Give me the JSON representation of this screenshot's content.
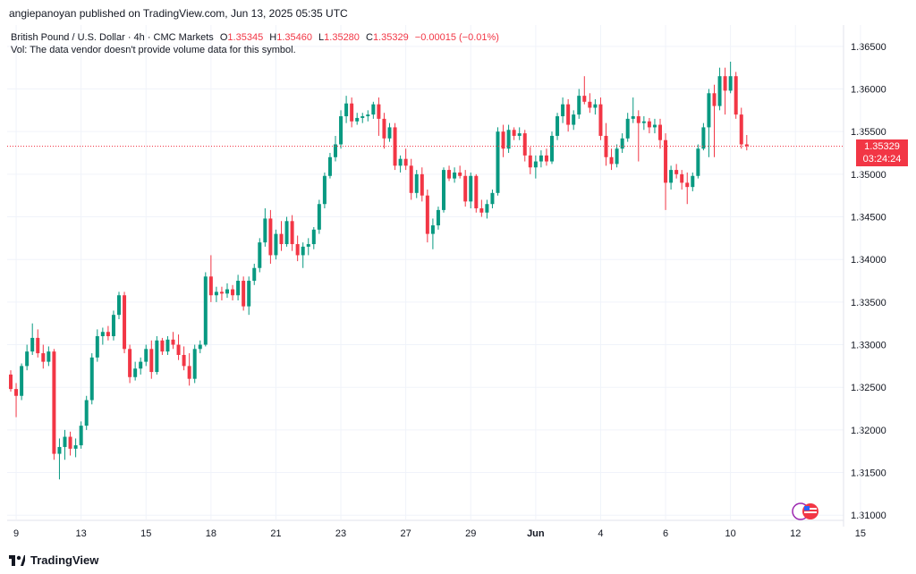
{
  "header": {
    "published": "angiepanoyan published on TradingView.com, Jun 13, 2025 05:35 UTC"
  },
  "legend": {
    "symbol": "British Pound / U.S. Dollar · 4h · CMC Markets",
    "o_label": "O",
    "o_value": "1.35345",
    "h_label": "H",
    "h_value": "1.35460",
    "l_label": "L",
    "l_value": "1.35280",
    "c_label": "C",
    "c_value": "1.35329",
    "change": "−0.00015 (−0.01%)",
    "volume_note": "Vol: The data vendor doesn't provide volume data for this symbol."
  },
  "price_tag": {
    "price": "1.35329",
    "countdown": "03:24:24"
  },
  "footer": {
    "brand": "TradingView"
  },
  "colors": {
    "up": "#089981",
    "down": "#f23645",
    "grid": "#f0f3fa",
    "axis_text": "#131722"
  },
  "icons": [
    "tradingview-logo-icon",
    "event-flag-icon"
  ],
  "chart_data": {
    "type": "candlestick",
    "ylim": [
      1.3095,
      1.3675
    ],
    "y_ticks": [
      "1.31000",
      "1.31500",
      "1.32000",
      "1.32500",
      "1.33000",
      "1.33500",
      "1.34000",
      "1.34500",
      "1.35000",
      "1.35500",
      "1.36000",
      "1.36500"
    ],
    "x_ticks": [
      {
        "label": "9",
        "index": 1
      },
      {
        "label": "13",
        "index": 13
      },
      {
        "label": "15",
        "index": 25
      },
      {
        "label": "18",
        "index": 37
      },
      {
        "label": "21",
        "index": 49
      },
      {
        "label": "23",
        "index": 61
      },
      {
        "label": "27",
        "index": 73
      },
      {
        "label": "29",
        "index": 85
      },
      {
        "label": "Jun",
        "index": 97
      },
      {
        "label": "4",
        "index": 109
      },
      {
        "label": "6",
        "index": 121
      },
      {
        "label": "10",
        "index": 133
      },
      {
        "label": "12",
        "index": 145
      },
      {
        "label": "15",
        "index": 157
      }
    ],
    "last_price": 1.35329,
    "candles": [
      [
        1.3265,
        1.327,
        1.3245,
        1.3248
      ],
      [
        1.3248,
        1.3255,
        1.3215,
        1.324
      ],
      [
        1.324,
        1.3278,
        1.3235,
        1.3275
      ],
      [
        1.3275,
        1.33,
        1.327,
        1.3292
      ],
      [
        1.3292,
        1.3325,
        1.3288,
        1.3308
      ],
      [
        1.3308,
        1.3318,
        1.3285,
        1.329
      ],
      [
        1.329,
        1.33,
        1.3272,
        1.328
      ],
      [
        1.328,
        1.3298,
        1.3275,
        1.3292
      ],
      [
        1.3292,
        1.3295,
        1.3165,
        1.3172
      ],
      [
        1.3172,
        1.319,
        1.3142,
        1.318
      ],
      [
        1.318,
        1.32,
        1.3165,
        1.3192
      ],
      [
        1.3192,
        1.3198,
        1.317,
        1.3178
      ],
      [
        1.3178,
        1.319,
        1.3168,
        1.3182
      ],
      [
        1.3182,
        1.321,
        1.3178,
        1.3205
      ],
      [
        1.3205,
        1.324,
        1.32,
        1.3235
      ],
      [
        1.3235,
        1.329,
        1.323,
        1.3285
      ],
      [
        1.3285,
        1.3318,
        1.328,
        1.331
      ],
      [
        1.331,
        1.332,
        1.33,
        1.3315
      ],
      [
        1.3315,
        1.3322,
        1.3305,
        1.331
      ],
      [
        1.331,
        1.334,
        1.3305,
        1.3335
      ],
      [
        1.3335,
        1.3362,
        1.333,
        1.3358
      ],
      [
        1.3358,
        1.3362,
        1.329,
        1.3295
      ],
      [
        1.3295,
        1.33,
        1.3255,
        1.3262
      ],
      [
        1.3262,
        1.328,
        1.3258,
        1.3272
      ],
      [
        1.3272,
        1.3285,
        1.3265,
        1.328
      ],
      [
        1.328,
        1.33,
        1.3275,
        1.3295
      ],
      [
        1.3295,
        1.3305,
        1.326,
        1.3268
      ],
      [
        1.3268,
        1.331,
        1.3265,
        1.3305
      ],
      [
        1.3305,
        1.3308,
        1.3288,
        1.3292
      ],
      [
        1.3292,
        1.331,
        1.3288,
        1.3306
      ],
      [
        1.3306,
        1.3315,
        1.3295,
        1.33
      ],
      [
        1.33,
        1.3312,
        1.3282,
        1.3288
      ],
      [
        1.3288,
        1.3298,
        1.327,
        1.3275
      ],
      [
        1.3275,
        1.329,
        1.3252,
        1.326
      ],
      [
        1.326,
        1.33,
        1.3255,
        1.3295
      ],
      [
        1.3295,
        1.3305,
        1.329,
        1.33
      ],
      [
        1.33,
        1.3385,
        1.3298,
        1.338
      ],
      [
        1.338,
        1.3405,
        1.335,
        1.3358
      ],
      [
        1.3358,
        1.3368,
        1.335,
        1.3362
      ],
      [
        1.3362,
        1.3368,
        1.3352,
        1.336
      ],
      [
        1.336,
        1.3372,
        1.3355,
        1.3365
      ],
      [
        1.3365,
        1.337,
        1.3352,
        1.3358
      ],
      [
        1.3358,
        1.3382,
        1.3352,
        1.3375
      ],
      [
        1.3375,
        1.338,
        1.334,
        1.3345
      ],
      [
        1.3345,
        1.338,
        1.3335,
        1.3375
      ],
      [
        1.3375,
        1.3395,
        1.337,
        1.339
      ],
      [
        1.339,
        1.3425,
        1.3385,
        1.342
      ],
      [
        1.342,
        1.346,
        1.3415,
        1.3448
      ],
      [
        1.3448,
        1.3458,
        1.3395,
        1.3405
      ],
      [
        1.3405,
        1.3435,
        1.34,
        1.343
      ],
      [
        1.343,
        1.3445,
        1.341,
        1.3418
      ],
      [
        1.3418,
        1.345,
        1.3415,
        1.3445
      ],
      [
        1.3445,
        1.3452,
        1.341,
        1.3418
      ],
      [
        1.3418,
        1.3428,
        1.3398,
        1.3405
      ],
      [
        1.3405,
        1.342,
        1.339,
        1.3415
      ],
      [
        1.3415,
        1.3425,
        1.3405,
        1.3418
      ],
      [
        1.3418,
        1.3438,
        1.3412,
        1.3435
      ],
      [
        1.3435,
        1.347,
        1.343,
        1.3465
      ],
      [
        1.3465,
        1.3502,
        1.346,
        1.3498
      ],
      [
        1.3498,
        1.3525,
        1.3495,
        1.352
      ],
      [
        1.352,
        1.3545,
        1.3515,
        1.3535
      ],
      [
        1.3535,
        1.3575,
        1.353,
        1.3568
      ],
      [
        1.3568,
        1.3592,
        1.356,
        1.3583
      ],
      [
        1.3583,
        1.359,
        1.3555,
        1.3562
      ],
      [
        1.3562,
        1.3572,
        1.3558,
        1.3566
      ],
      [
        1.3566,
        1.3572,
        1.356,
        1.3568
      ],
      [
        1.3568,
        1.3575,
        1.3562,
        1.357
      ],
      [
        1.357,
        1.3585,
        1.3565,
        1.3582
      ],
      [
        1.3582,
        1.359,
        1.3545,
        1.3565
      ],
      [
        1.3565,
        1.3572,
        1.353,
        1.3542
      ],
      [
        1.3542,
        1.356,
        1.3538,
        1.3555
      ],
      [
        1.3555,
        1.356,
        1.3505,
        1.351
      ],
      [
        1.351,
        1.3522,
        1.3502,
        1.3518
      ],
      [
        1.3518,
        1.353,
        1.3505,
        1.351
      ],
      [
        1.351,
        1.3518,
        1.347,
        1.3478
      ],
      [
        1.3478,
        1.3505,
        1.3472,
        1.35
      ],
      [
        1.35,
        1.3508,
        1.3468,
        1.3475
      ],
      [
        1.3475,
        1.3482,
        1.342,
        1.343
      ],
      [
        1.343,
        1.3448,
        1.3412,
        1.344
      ],
      [
        1.344,
        1.3462,
        1.3435,
        1.3458
      ],
      [
        1.3458,
        1.3508,
        1.3455,
        1.3505
      ],
      [
        1.3505,
        1.351,
        1.3492,
        1.3495
      ],
      [
        1.3495,
        1.3508,
        1.349,
        1.3502
      ],
      [
        1.3502,
        1.351,
        1.3495,
        1.3498
      ],
      [
        1.3498,
        1.3505,
        1.3462,
        1.3468
      ],
      [
        1.3468,
        1.3502,
        1.346,
        1.3498
      ],
      [
        1.3498,
        1.35,
        1.3455,
        1.346
      ],
      [
        1.346,
        1.347,
        1.345,
        1.3455
      ],
      [
        1.3455,
        1.347,
        1.3448,
        1.3465
      ],
      [
        1.3465,
        1.3482,
        1.346,
        1.3478
      ],
      [
        1.3478,
        1.3555,
        1.3475,
        1.355
      ],
      [
        1.355,
        1.3558,
        1.352,
        1.353
      ],
      [
        1.353,
        1.3558,
        1.3525,
        1.3552
      ],
      [
        1.3552,
        1.3555,
        1.354,
        1.3545
      ],
      [
        1.3545,
        1.3555,
        1.354,
        1.3548
      ],
      [
        1.3548,
        1.3552,
        1.3515,
        1.3522
      ],
      [
        1.3522,
        1.3532,
        1.35,
        1.3508
      ],
      [
        1.3508,
        1.3522,
        1.3495,
        1.3515
      ],
      [
        1.3515,
        1.3528,
        1.3508,
        1.3522
      ],
      [
        1.3522,
        1.353,
        1.351,
        1.3515
      ],
      [
        1.3515,
        1.355,
        1.3512,
        1.3545
      ],
      [
        1.3545,
        1.3572,
        1.354,
        1.3568
      ],
      [
        1.3568,
        1.359,
        1.356,
        1.3582
      ],
      [
        1.3582,
        1.3588,
        1.355,
        1.3558
      ],
      [
        1.3558,
        1.3575,
        1.3552,
        1.357
      ],
      [
        1.357,
        1.36,
        1.3565,
        1.3592
      ],
      [
        1.3592,
        1.3615,
        1.3582,
        1.3585
      ],
      [
        1.3585,
        1.3595,
        1.3572,
        1.3578
      ],
      [
        1.3578,
        1.3588,
        1.357,
        1.3582
      ],
      [
        1.3582,
        1.359,
        1.354,
        1.3545
      ],
      [
        1.3545,
        1.356,
        1.351,
        1.352
      ],
      [
        1.352,
        1.353,
        1.3505,
        1.3512
      ],
      [
        1.3512,
        1.3535,
        1.3508,
        1.353
      ],
      [
        1.353,
        1.3548,
        1.3525,
        1.3542
      ],
      [
        1.3542,
        1.3572,
        1.3538,
        1.3565
      ],
      [
        1.3565,
        1.359,
        1.356,
        1.3568
      ],
      [
        1.3568,
        1.3575,
        1.3515,
        1.356
      ],
      [
        1.356,
        1.3568,
        1.3552,
        1.3562
      ],
      [
        1.3562,
        1.3566,
        1.3548,
        1.3555
      ],
      [
        1.3555,
        1.3565,
        1.3548,
        1.3558
      ],
      [
        1.3558,
        1.3565,
        1.353,
        1.354
      ],
      [
        1.354,
        1.3548,
        1.3458,
        1.349
      ],
      [
        1.349,
        1.351,
        1.3482,
        1.3505
      ],
      [
        1.3505,
        1.3512,
        1.3495,
        1.35
      ],
      [
        1.35,
        1.3505,
        1.3482,
        1.349
      ],
      [
        1.349,
        1.3502,
        1.3465,
        1.3485
      ],
      [
        1.3485,
        1.3502,
        1.348,
        1.3498
      ],
      [
        1.3498,
        1.3535,
        1.3495,
        1.353
      ],
      [
        1.353,
        1.356,
        1.3528,
        1.3555
      ],
      [
        1.3555,
        1.36,
        1.352,
        1.3595
      ],
      [
        1.3595,
        1.3605,
        1.352,
        1.358
      ],
      [
        1.358,
        1.3625,
        1.3575,
        1.3615
      ],
      [
        1.3615,
        1.3625,
        1.357,
        1.3598
      ],
      [
        1.3598,
        1.3632,
        1.3595,
        1.3615
      ],
      [
        1.3615,
        1.362,
        1.3565,
        1.357
      ],
      [
        1.357,
        1.3578,
        1.353,
        1.3535
      ],
      [
        1.3535,
        1.3546,
        1.3528,
        1.35329
      ]
    ]
  }
}
